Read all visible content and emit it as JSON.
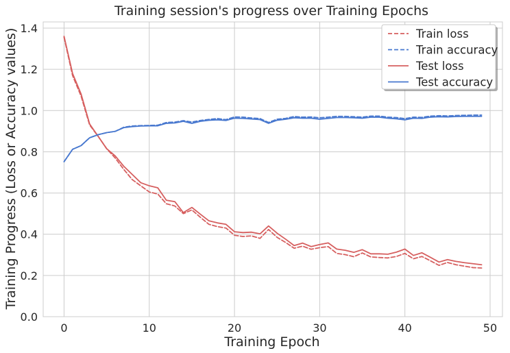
{
  "chart_data": {
    "type": "line",
    "title": "Training session's progress over Training Epochs",
    "xlabel": "Training Epoch",
    "ylabel": "Training Progress (Loss or Accuracy values)",
    "xlim": [
      -2.45,
      51.45
    ],
    "ylim": [
      0.0,
      1.43
    ],
    "xticks": [
      0,
      10,
      20,
      30,
      40,
      50
    ],
    "yticks": [
      0.0,
      0.2,
      0.4,
      0.6,
      0.8,
      1.0,
      1.2,
      1.4
    ],
    "grid": true,
    "legend_position": "top-right",
    "x": [
      0,
      1,
      2,
      3,
      4,
      5,
      6,
      7,
      8,
      9,
      10,
      11,
      12,
      13,
      14,
      15,
      16,
      17,
      18,
      19,
      20,
      21,
      22,
      23,
      24,
      25,
      26,
      27,
      28,
      29,
      30,
      31,
      32,
      33,
      34,
      35,
      36,
      37,
      38,
      39,
      40,
      41,
      42,
      43,
      44,
      45,
      46,
      47,
      48,
      49
    ],
    "series": [
      {
        "name": "Train loss",
        "color": "#d65f5f",
        "dash": "dashed",
        "values": [
          1.355,
          1.17,
          1.07,
          0.93,
          0.875,
          0.815,
          0.77,
          0.715,
          0.665,
          0.635,
          0.605,
          0.595,
          0.548,
          0.537,
          0.5,
          0.518,
          0.482,
          0.448,
          0.437,
          0.43,
          0.395,
          0.389,
          0.392,
          0.38,
          0.423,
          0.385,
          0.36,
          0.332,
          0.342,
          0.327,
          0.335,
          0.34,
          0.307,
          0.301,
          0.291,
          0.309,
          0.29,
          0.287,
          0.285,
          0.292,
          0.307,
          0.281,
          0.292,
          0.271,
          0.249,
          0.263,
          0.252,
          0.245,
          0.238,
          0.236
        ]
      },
      {
        "name": "Train accuracy",
        "color": "#4878cf",
        "dash": "dashed",
        "values": [
          0.752,
          0.812,
          0.83,
          0.868,
          0.883,
          0.893,
          0.899,
          0.919,
          0.925,
          0.927,
          0.928,
          0.929,
          0.942,
          0.944,
          0.951,
          0.944,
          0.952,
          0.957,
          0.961,
          0.956,
          0.969,
          0.968,
          0.964,
          0.961,
          0.942,
          0.958,
          0.962,
          0.971,
          0.968,
          0.969,
          0.965,
          0.968,
          0.972,
          0.972,
          0.97,
          0.968,
          0.973,
          0.973,
          0.968,
          0.966,
          0.961,
          0.968,
          0.967,
          0.973,
          0.975,
          0.974,
          0.976,
          0.977,
          0.978,
          0.978
        ]
      },
      {
        "name": "Test loss",
        "color": "#d65f5f",
        "dash": "solid",
        "values": [
          1.36,
          1.18,
          1.08,
          0.935,
          0.875,
          0.815,
          0.78,
          0.73,
          0.69,
          0.65,
          0.635,
          0.625,
          0.565,
          0.558,
          0.505,
          0.53,
          0.497,
          0.465,
          0.455,
          0.448,
          0.412,
          0.408,
          0.41,
          0.402,
          0.44,
          0.405,
          0.376,
          0.345,
          0.357,
          0.34,
          0.35,
          0.358,
          0.328,
          0.322,
          0.312,
          0.325,
          0.305,
          0.305,
          0.303,
          0.313,
          0.328,
          0.297,
          0.31,
          0.288,
          0.265,
          0.277,
          0.268,
          0.262,
          0.257,
          0.252
        ]
      },
      {
        "name": "Test accuracy",
        "color": "#4878cf",
        "dash": "solid",
        "values": [
          0.752,
          0.812,
          0.83,
          0.868,
          0.883,
          0.893,
          0.899,
          0.917,
          0.922,
          0.925,
          0.926,
          0.926,
          0.938,
          0.94,
          0.948,
          0.938,
          0.948,
          0.953,
          0.955,
          0.952,
          0.963,
          0.962,
          0.959,
          0.956,
          0.938,
          0.953,
          0.958,
          0.965,
          0.963,
          0.963,
          0.958,
          0.962,
          0.966,
          0.966,
          0.965,
          0.963,
          0.968,
          0.968,
          0.963,
          0.96,
          0.955,
          0.963,
          0.962,
          0.968,
          0.97,
          0.969,
          0.971,
          0.972,
          0.972,
          0.972
        ]
      }
    ]
  }
}
